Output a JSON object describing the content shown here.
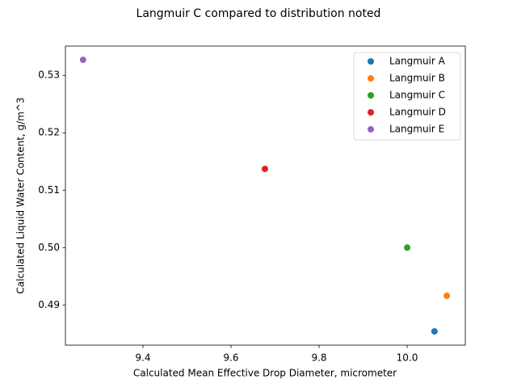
{
  "chart_data": {
    "type": "scatter",
    "title": "Langmuir C compared to distribution noted",
    "x_label": "Calculated Mean Effective Drop Diameter, micrometer",
    "y_label": "Calculated Liquid Water Content, g/m^3",
    "series": [
      {
        "name": "Langmuir A",
        "color": "#1f77b4",
        "x": [
          10.062
        ],
        "values": [
          0.4854
        ]
      },
      {
        "name": "Langmuir B",
        "color": "#ff7f0e",
        "x": [
          10.09
        ],
        "values": [
          0.4916
        ]
      },
      {
        "name": "Langmuir C",
        "color": "#2ca02c",
        "x": [
          10.0
        ],
        "values": [
          0.5
        ]
      },
      {
        "name": "Langmuir D",
        "color": "#d62728",
        "x": [
          9.677
        ],
        "values": [
          0.5137
        ]
      },
      {
        "name": "Langmuir E",
        "color": "#9467bd",
        "x": [
          9.264
        ],
        "values": [
          0.5327
        ]
      }
    ],
    "xlim": [
      9.224,
      10.132
    ],
    "xticks": [
      9.4,
      9.6,
      9.8,
      {
        "value": 10,
        "label": "10.0"
      }
    ],
    "ylim": [
      0.483,
      0.5351
    ],
    "yticks": [
      0.49,
      {
        "value": 0.5,
        "label": "0.50"
      },
      0.51,
      0.52,
      0.53
    ],
    "legend": "upper right"
  }
}
